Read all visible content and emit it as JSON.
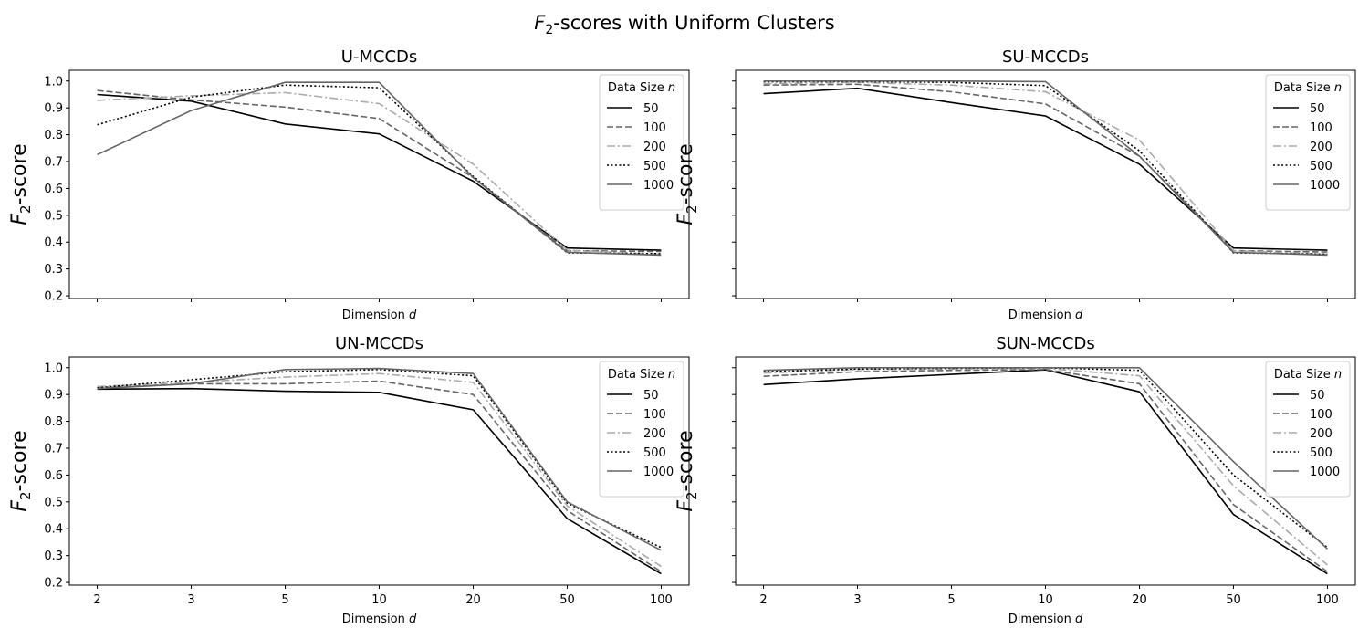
{
  "figure_title": {
    "prefix": "F",
    "subscript": "2",
    "suffix": "-scores with Uniform Clusters"
  },
  "chart_data": [
    {
      "type": "line",
      "title": "U-MCCDs",
      "xlabel": {
        "text": "Dimension ",
        "var": "d"
      },
      "ylabel": {
        "prefix": "F",
        "subscript": "2",
        "suffix": "-score"
      },
      "categories": [
        "2",
        "3",
        "5",
        "10",
        "20",
        "50",
        "100"
      ],
      "ylim": [
        0.19,
        1.04
      ],
      "yticks": [
        0.2,
        0.3,
        0.4,
        0.5,
        0.6,
        0.7,
        0.8,
        0.9,
        1.0
      ],
      "show_xtick_labels": false,
      "show_ytick_labels": true,
      "grid": false,
      "legend": {
        "title": "Data Size ",
        "title_var": "n",
        "position": "top-right"
      },
      "series": [
        {
          "name": "50",
          "values": [
            0.95,
            0.925,
            0.84,
            0.803,
            0.627,
            0.378,
            0.37
          ]
        },
        {
          "name": "100",
          "values": [
            0.965,
            0.93,
            0.903,
            0.86,
            0.64,
            0.368,
            0.365
          ]
        },
        {
          "name": "200",
          "values": [
            0.928,
            0.945,
            0.957,
            0.916,
            0.69,
            0.37,
            0.355
          ]
        },
        {
          "name": "500",
          "values": [
            0.837,
            0.94,
            0.985,
            0.975,
            0.645,
            0.36,
            0.357
          ]
        },
        {
          "name": "1000",
          "values": [
            0.726,
            0.89,
            0.995,
            0.995,
            0.64,
            0.362,
            0.352
          ]
        }
      ]
    },
    {
      "type": "line",
      "title": "SU-MCCDs",
      "xlabel": {
        "text": "Dimension ",
        "var": "d"
      },
      "ylabel": {
        "prefix": "F",
        "subscript": "2",
        "suffix": "-score"
      },
      "categories": [
        "2",
        "3",
        "5",
        "10",
        "20",
        "50",
        "100"
      ],
      "ylim": [
        0.19,
        1.04
      ],
      "yticks": [
        0.2,
        0.3,
        0.4,
        0.5,
        0.6,
        0.7,
        0.8,
        0.9,
        1.0
      ],
      "show_xtick_labels": false,
      "show_ytick_labels": false,
      "grid": false,
      "legend": {
        "title": "Data Size ",
        "title_var": "n",
        "position": "top-right"
      },
      "series": [
        {
          "name": "50",
          "values": [
            0.953,
            0.973,
            0.92,
            0.87,
            0.69,
            0.378,
            0.37
          ]
        },
        {
          "name": "100",
          "values": [
            0.985,
            0.988,
            0.96,
            0.915,
            0.72,
            0.368,
            0.363
          ]
        },
        {
          "name": "200",
          "values": [
            0.99,
            0.995,
            0.985,
            0.96,
            0.78,
            0.368,
            0.355
          ]
        },
        {
          "name": "500",
          "values": [
            0.997,
            0.998,
            0.995,
            0.983,
            0.74,
            0.36,
            0.355
          ]
        },
        {
          "name": "1000",
          "values": [
            1.0,
            1.0,
            1.0,
            0.998,
            0.72,
            0.362,
            0.352
          ]
        }
      ]
    },
    {
      "type": "line",
      "title": "UN-MCCDs",
      "xlabel": {
        "text": "Dimension ",
        "var": "d"
      },
      "ylabel": {
        "prefix": "F",
        "subscript": "2",
        "suffix": "-score"
      },
      "categories": [
        "2",
        "3",
        "5",
        "10",
        "20",
        "50",
        "100"
      ],
      "ylim": [
        0.19,
        1.04
      ],
      "yticks": [
        0.2,
        0.3,
        0.4,
        0.5,
        0.6,
        0.7,
        0.8,
        0.9,
        1.0
      ],
      "show_xtick_labels": true,
      "show_ytick_labels": true,
      "grid": false,
      "legend": {
        "title": "Data Size ",
        "title_var": "n",
        "position": "top-right"
      },
      "series": [
        {
          "name": "50",
          "values": [
            0.92,
            0.922,
            0.912,
            0.908,
            0.843,
            0.438,
            0.232
          ]
        },
        {
          "name": "100",
          "values": [
            0.925,
            0.94,
            0.94,
            0.95,
            0.9,
            0.468,
            0.24
          ]
        },
        {
          "name": "200",
          "values": [
            0.93,
            0.945,
            0.965,
            0.978,
            0.945,
            0.485,
            0.26
          ]
        },
        {
          "name": "500",
          "values": [
            0.925,
            0.955,
            0.985,
            0.993,
            0.97,
            0.495,
            0.33
          ]
        },
        {
          "name": "1000",
          "values": [
            0.922,
            0.94,
            0.993,
            0.997,
            0.978,
            0.5,
            0.32
          ]
        }
      ]
    },
    {
      "type": "line",
      "title": "SUN-MCCDs",
      "xlabel": {
        "text": "Dimension ",
        "var": "d"
      },
      "ylabel": {
        "prefix": "F",
        "subscript": "2",
        "suffix": "-score"
      },
      "categories": [
        "2",
        "3",
        "5",
        "10",
        "20",
        "50",
        "100"
      ],
      "ylim": [
        0.19,
        1.04
      ],
      "yticks": [
        0.2,
        0.3,
        0.4,
        0.5,
        0.6,
        0.7,
        0.8,
        0.9,
        1.0
      ],
      "show_xtick_labels": true,
      "show_ytick_labels": false,
      "grid": false,
      "legend": {
        "title": "Data Size ",
        "title_var": "n",
        "position": "top-right"
      },
      "series": [
        {
          "name": "50",
          "values": [
            0.937,
            0.958,
            0.975,
            0.992,
            0.91,
            0.453,
            0.232
          ]
        },
        {
          "name": "100",
          "values": [
            0.968,
            0.985,
            0.99,
            0.993,
            0.94,
            0.49,
            0.24
          ]
        },
        {
          "name": "200",
          "values": [
            0.98,
            0.993,
            0.995,
            0.997,
            0.97,
            0.56,
            0.265
          ]
        },
        {
          "name": "500",
          "values": [
            0.985,
            0.995,
            0.998,
            1.0,
            0.99,
            0.6,
            0.33
          ]
        },
        {
          "name": "1000",
          "values": [
            0.99,
            1.0,
            1.0,
            1.0,
            1.0,
            0.65,
            0.325
          ]
        }
      ]
    }
  ],
  "series_styles": [
    {
      "color": "#000000",
      "dash": "none"
    },
    {
      "color": "#666666",
      "dash": "dashed"
    },
    {
      "color": "#aaaaaa",
      "dash": "dashdot"
    },
    {
      "color": "#000000",
      "dash": "dotted"
    },
    {
      "color": "#666666",
      "dash": "none"
    }
  ]
}
